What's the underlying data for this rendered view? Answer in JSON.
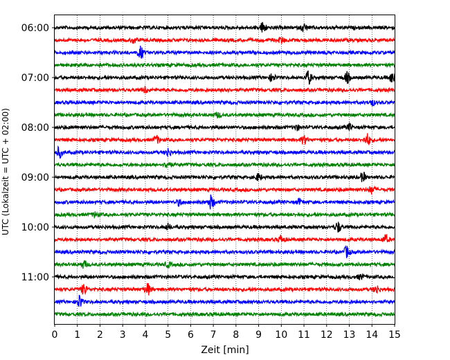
{
  "chart_data": {
    "type": "line",
    "subtype": "helicorder",
    "title": "",
    "xlabel": "Zeit  [min]",
    "ylabel": "UTC (Lokalzeit = UTC + 02:00)",
    "xlim": [
      0,
      15
    ],
    "x_ticks": [
      "0",
      "1",
      "2",
      "3",
      "4",
      "5",
      "6",
      "7",
      "8",
      "9",
      "10",
      "11",
      "12",
      "13",
      "14",
      "15"
    ],
    "y_ticks": [
      {
        "label": "06:00",
        "row": 0
      },
      {
        "label": "07:00",
        "row": 4
      },
      {
        "label": "08:00",
        "row": 8
      },
      {
        "label": "09:00",
        "row": 12
      },
      {
        "label": "10:00",
        "row": 16
      },
      {
        "label": "11:00",
        "row": 20
      }
    ],
    "vertical_grid": "dotted",
    "color_cycle": [
      "#000000",
      "#ff0000",
      "#0000ff",
      "#008000"
    ],
    "series": [
      {
        "start": "06:00",
        "color": "#000000",
        "bursts": [
          {
            "x": 9.2,
            "amp": 1.0
          },
          {
            "x": 11.0,
            "amp": 0.7
          }
        ]
      },
      {
        "start": "06:15",
        "color": "#ff0000",
        "bursts": [
          {
            "x": 3.5,
            "amp": 0.5
          },
          {
            "x": 10.0,
            "amp": 0.5
          }
        ]
      },
      {
        "start": "06:30",
        "color": "#0000ff",
        "bursts": [
          {
            "x": 3.8,
            "amp": 1.0
          }
        ]
      },
      {
        "start": "06:45",
        "color": "#008000",
        "bursts": []
      },
      {
        "start": "07:00",
        "color": "#000000",
        "bursts": [
          {
            "x": 11.2,
            "amp": 1.1
          },
          {
            "x": 12.9,
            "amp": 0.9
          },
          {
            "x": 14.9,
            "amp": 1.0
          },
          {
            "x": 9.6,
            "amp": 0.6
          }
        ]
      },
      {
        "start": "07:15",
        "color": "#ff0000",
        "bursts": [
          {
            "x": 4.0,
            "amp": 0.5
          },
          {
            "x": 7.5,
            "amp": 0.4
          }
        ]
      },
      {
        "start": "07:30",
        "color": "#0000ff",
        "bursts": [
          {
            "x": 14.0,
            "amp": 0.5
          }
        ]
      },
      {
        "start": "07:45",
        "color": "#008000",
        "bursts": [
          {
            "x": 7.2,
            "amp": 0.4
          }
        ]
      },
      {
        "start": "08:00",
        "color": "#000000",
        "bursts": [
          {
            "x": 13.0,
            "amp": 0.5
          },
          {
            "x": 10.7,
            "amp": 0.4
          }
        ]
      },
      {
        "start": "08:15",
        "color": "#ff0000",
        "bursts": [
          {
            "x": 13.8,
            "amp": 1.0
          },
          {
            "x": 11.0,
            "amp": 0.7
          },
          {
            "x": 4.5,
            "amp": 0.6
          }
        ]
      },
      {
        "start": "08:30",
        "color": "#0000ff",
        "bursts": [
          {
            "x": 0.2,
            "amp": 0.9
          },
          {
            "x": 5.0,
            "amp": 0.7
          }
        ]
      },
      {
        "start": "08:45",
        "color": "#008000",
        "bursts": [
          {
            "x": 5.0,
            "amp": 0.7
          }
        ]
      },
      {
        "start": "09:00",
        "color": "#000000",
        "bursts": [
          {
            "x": 13.6,
            "amp": 0.8
          },
          {
            "x": 9.0,
            "amp": 0.6
          }
        ]
      },
      {
        "start": "09:15",
        "color": "#ff0000",
        "bursts": [
          {
            "x": 14.0,
            "amp": 0.7
          }
        ]
      },
      {
        "start": "09:30",
        "color": "#0000ff",
        "bursts": [
          {
            "x": 6.9,
            "amp": 1.2
          },
          {
            "x": 5.5,
            "amp": 0.5
          },
          {
            "x": 10.8,
            "amp": 0.5
          }
        ]
      },
      {
        "start": "09:45",
        "color": "#008000",
        "bursts": [
          {
            "x": 1.8,
            "amp": 0.4
          }
        ]
      },
      {
        "start": "10:00",
        "color": "#000000",
        "bursts": [
          {
            "x": 12.5,
            "amp": 0.9
          },
          {
            "x": 5.0,
            "amp": 0.5
          }
        ]
      },
      {
        "start": "10:15",
        "color": "#ff0000",
        "bursts": [
          {
            "x": 10.0,
            "amp": 0.7
          },
          {
            "x": 14.6,
            "amp": 0.7
          }
        ]
      },
      {
        "start": "10:30",
        "color": "#0000ff",
        "bursts": [
          {
            "x": 12.9,
            "amp": 1.0
          }
        ]
      },
      {
        "start": "10:45",
        "color": "#008000",
        "bursts": [
          {
            "x": 1.3,
            "amp": 0.6
          },
          {
            "x": 5.0,
            "amp": 0.4
          }
        ]
      },
      {
        "start": "11:00",
        "color": "#000000",
        "bursts": [
          {
            "x": 13.5,
            "amp": 0.4
          }
        ]
      },
      {
        "start": "11:15",
        "color": "#ff0000",
        "bursts": [
          {
            "x": 1.3,
            "amp": 0.9
          },
          {
            "x": 4.1,
            "amp": 1.0
          },
          {
            "x": 14.2,
            "amp": 0.7
          }
        ]
      },
      {
        "start": "11:30",
        "color": "#0000ff",
        "bursts": [
          {
            "x": 1.1,
            "amp": 1.1
          }
        ]
      },
      {
        "start": "11:45",
        "color": "#008000",
        "bursts": []
      }
    ]
  }
}
